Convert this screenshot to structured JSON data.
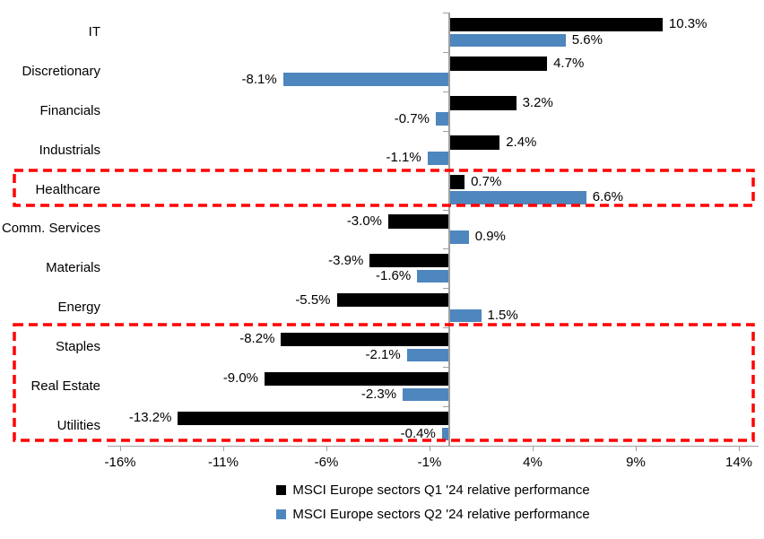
{
  "chart_data": {
    "type": "bar",
    "orientation": "horizontal",
    "title": "",
    "categories": [
      "IT",
      "Discretionary",
      "Financials",
      "Industrials",
      "Healthcare",
      "Comm. Services",
      "Materials",
      "Energy",
      "Staples",
      "Real Estate",
      "Utilities"
    ],
    "series": [
      {
        "name": "MSCI Europe sectors Q1 '24 relative performance",
        "color": "#000000",
        "values": [
          10.3,
          4.7,
          3.2,
          2.4,
          0.7,
          -3.0,
          -3.9,
          -5.5,
          -8.2,
          -9.0,
          -13.2
        ],
        "labels": [
          "10.3%",
          "4.7%",
          "3.2%",
          "2.4%",
          "0.7%",
          "-3.0%",
          "-3.9%",
          "-5.5%",
          "-8.2%",
          "-9.0%",
          "-13.2%"
        ]
      },
      {
        "name": "MSCI Europe sectors Q2 '24 relative performance",
        "color": "#4E86BE",
        "values": [
          5.6,
          -8.1,
          -0.7,
          -1.1,
          6.6,
          0.9,
          -1.6,
          1.5,
          -2.1,
          -2.3,
          -0.4
        ],
        "labels": [
          "5.6%",
          "-8.1%",
          "-0.7%",
          "-1.1%",
          "6.6%",
          "0.9%",
          "-1.6%",
          "1.5%",
          "-2.1%",
          "-2.3%",
          "-0.4%"
        ]
      }
    ],
    "x_axis": {
      "min": -16,
      "max": 14,
      "tick_step": 5,
      "tick_values": [
        -16,
        -11,
        -6,
        -1,
        4,
        9,
        14
      ],
      "tick_labels": [
        "-16%",
        "-11%",
        "-6%",
        "-1%",
        "4%",
        "9%",
        "14%"
      ],
      "unit": "%"
    },
    "legend_position": "bottom",
    "grid": false,
    "annotations": [
      {
        "type": "dashed-box",
        "color": "#FF0000",
        "rows": [
          "Healthcare"
        ]
      },
      {
        "type": "dashed-box",
        "color": "#FF0000",
        "rows": [
          "Staples",
          "Real Estate",
          "Utilities"
        ]
      }
    ]
  }
}
